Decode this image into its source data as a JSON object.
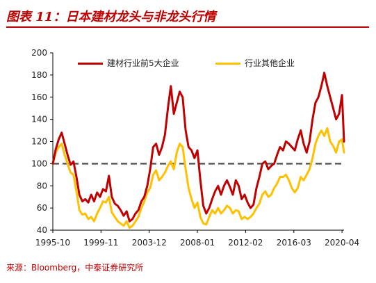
{
  "figure_title": "图表 11：日本建材龙头与非龙头行情",
  "source_note": "来源：Bloomberg，中泰证券研究所",
  "colors": {
    "series1": "#c00000",
    "series2": "#ffc000",
    "axis": "#000000",
    "baseline": "#595959"
  },
  "chart_data": {
    "type": "line",
    "xlabel": "",
    "ylabel": "",
    "x_tick_labels": [
      "1995-10",
      "1999-11",
      "2003-12",
      "2008-01",
      "2012-02",
      "2016-03",
      "2020-04"
    ],
    "x_ticks_year": [
      1995.75,
      1999.83,
      2003.92,
      2008.0,
      2012.08,
      2016.17,
      2020.25
    ],
    "xlim": [
      1995.75,
      2020.42
    ],
    "ylim": [
      40,
      200
    ],
    "y_ticks": [
      40,
      60,
      80,
      100,
      120,
      140,
      160,
      180,
      200
    ],
    "baseline": 100,
    "grid": false,
    "legend_position": "top",
    "x": [
      1995.75,
      1996.0,
      1996.25,
      1996.5,
      1996.75,
      1997.0,
      1997.25,
      1997.5,
      1997.75,
      1998.0,
      1998.25,
      1998.5,
      1998.75,
      1999.0,
      1999.25,
      1999.5,
      1999.75,
      2000.0,
      2000.25,
      2000.5,
      2000.75,
      2001.0,
      2001.25,
      2001.5,
      2001.75,
      2002.0,
      2002.25,
      2002.5,
      2002.75,
      2003.0,
      2003.25,
      2003.5,
      2003.75,
      2004.0,
      2004.25,
      2004.5,
      2004.75,
      2005.0,
      2005.25,
      2005.5,
      2005.75,
      2006.0,
      2006.25,
      2006.5,
      2006.75,
      2007.0,
      2007.25,
      2007.5,
      2007.75,
      2008.0,
      2008.25,
      2008.5,
      2008.75,
      2009.0,
      2009.25,
      2009.5,
      2009.75,
      2010.0,
      2010.25,
      2010.5,
      2010.75,
      2011.0,
      2011.25,
      2011.5,
      2011.75,
      2012.0,
      2012.25,
      2012.5,
      2012.75,
      2013.0,
      2013.25,
      2013.5,
      2013.75,
      2014.0,
      2014.25,
      2014.5,
      2014.75,
      2015.0,
      2015.25,
      2015.5,
      2015.75,
      2016.0,
      2016.25,
      2016.5,
      2016.75,
      2017.0,
      2017.25,
      2017.5,
      2017.75,
      2018.0,
      2018.25,
      2018.5,
      2018.75,
      2019.0,
      2019.25,
      2019.5,
      2019.75,
      2020.0,
      2020.25,
      2020.42
    ],
    "series": [
      {
        "name": "建材行业前5大企业",
        "color": "#c00000",
        "values": [
          100,
          113,
          122,
          128,
          118,
          108,
          99,
          102,
          88,
          72,
          66,
          68,
          65,
          72,
          66,
          74,
          70,
          77,
          75,
          89,
          70,
          64,
          62,
          58,
          53,
          57,
          48,
          50,
          55,
          58,
          66,
          70,
          80,
          95,
          115,
          118,
          108,
          115,
          126,
          150,
          170,
          145,
          155,
          165,
          160,
          130,
          115,
          112,
          105,
          112,
          85,
          62,
          55,
          60,
          68,
          75,
          80,
          72,
          80,
          85,
          79,
          72,
          85,
          80,
          68,
          72,
          65,
          60,
          63,
          78,
          88,
          100,
          102,
          95,
          98,
          100,
          108,
          115,
          112,
          120,
          118,
          115,
          112,
          122,
          130,
          118,
          110,
          120,
          140,
          155,
          160,
          170,
          182,
          170,
          160,
          150,
          140,
          145,
          162,
          120
        ]
      },
      {
        "name": "行业其他企业",
        "color": "#ffc000",
        "values": [
          100,
          110,
          115,
          118,
          108,
          100,
          92,
          90,
          75,
          58,
          54,
          55,
          50,
          52,
          48,
          55,
          60,
          66,
          65,
          70,
          56,
          52,
          48,
          46,
          44,
          48,
          42,
          44,
          48,
          52,
          60,
          66,
          74,
          78,
          90,
          94,
          85,
          88,
          92,
          98,
          102,
          95,
          110,
          118,
          115,
          95,
          78,
          68,
          60,
          65,
          52,
          46,
          45,
          52,
          58,
          55,
          60,
          55,
          58,
          62,
          60,
          55,
          58,
          57,
          50,
          52,
          50,
          52,
          55,
          60,
          64,
          72,
          75,
          70,
          72,
          78,
          82,
          88,
          88,
          90,
          85,
          78,
          74,
          78,
          88,
          85,
          90,
          95,
          105,
          118,
          125,
          130,
          125,
          132,
          120,
          116,
          110,
          120,
          122,
          110
        ]
      }
    ]
  }
}
